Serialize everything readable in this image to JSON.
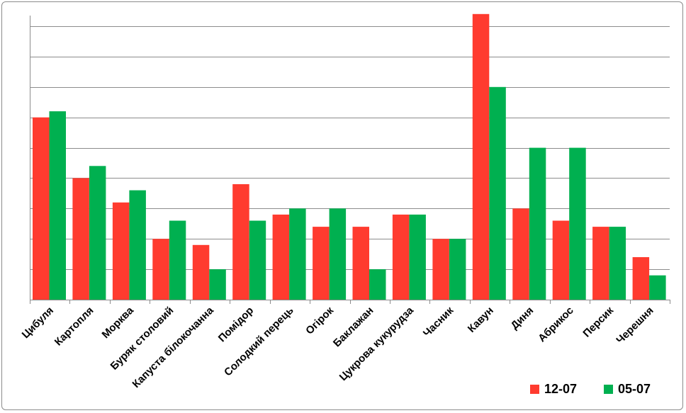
{
  "chart_data": {
    "type": "bar",
    "categories": [
      "Цибуля",
      "Картопля",
      "Морква",
      "Буряк столовий",
      "Капуста білокочанна",
      "Помідор",
      "Солодкий перець",
      "Огірок",
      "Баклажан",
      "Цукрова кукурудза",
      "Часник",
      "Кавун",
      "Диня",
      "Абрикос",
      "Персик",
      "Черешня"
    ],
    "series": [
      {
        "name": "12-07",
        "color": "#ff3b2f",
        "values": [
          6.0,
          4.0,
          3.2,
          2.0,
          1.8,
          3.8,
          2.8,
          2.4,
          2.4,
          2.8,
          2.0,
          9.4,
          3.0,
          2.6,
          2.4,
          1.4
        ]
      },
      {
        "name": "05-07",
        "color": "#00b050",
        "values": [
          6.2,
          4.4,
          3.6,
          2.6,
          1.0,
          2.6,
          3.0,
          3.0,
          1.0,
          2.8,
          2.0,
          7.0,
          5.0,
          5.0,
          2.4,
          0.8
        ]
      }
    ],
    "ylim": [
      0,
      9
    ],
    "y_gridlines": 9,
    "grid": true,
    "y_tick_labels": false,
    "legend_position": "bottom-right",
    "title": "",
    "xlabel": "",
    "ylabel": ""
  }
}
